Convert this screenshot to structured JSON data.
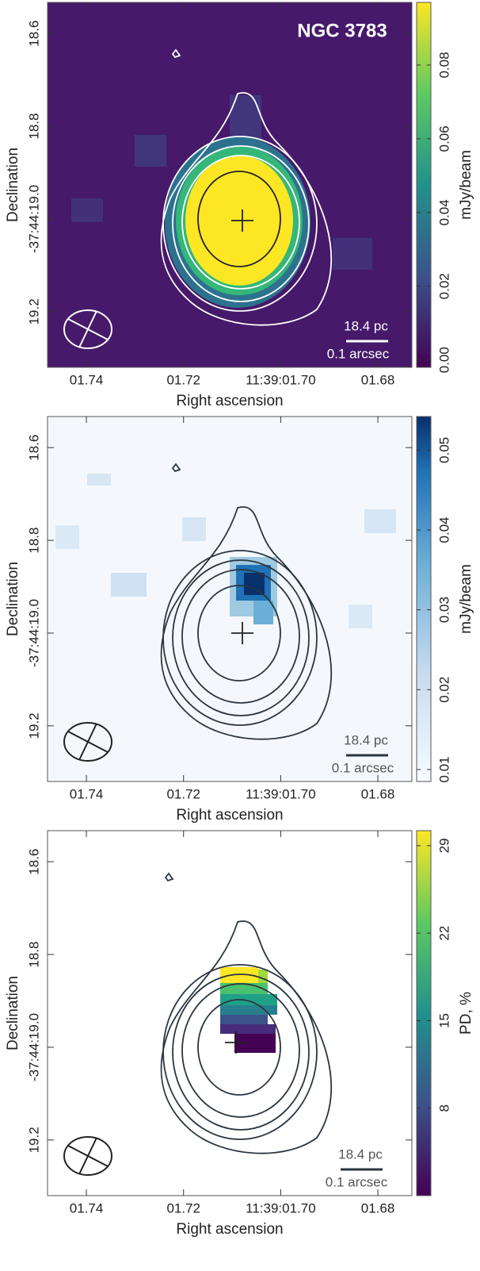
{
  "chart_data": [
    {
      "type": "heatmap",
      "title": "NGC 3783",
      "x_label": "Right ascension",
      "y_label": "Declination",
      "colorbar_label": "mJy/beam",
      "colormap": "viridis",
      "xlim": [
        1.748,
        1.673
      ],
      "xticks": [
        {
          "value": 1.74,
          "label": "01.74"
        },
        {
          "value": 1.72,
          "label": "01.72"
        },
        {
          "value": 1.7,
          "label": "11:39:01.70"
        },
        {
          "value": 1.68,
          "label": "01.68"
        }
      ],
      "ylim": [
        18.533,
        19.32
      ],
      "yticks": [
        18.6,
        18.8,
        {
          "value": 19.0,
          "label": "-37:44:19.0"
        },
        19.2
      ],
      "clim": [
        -0.002,
        0.097
      ],
      "cticks": [
        {
          "value": 0,
          "label": "0.00"
        },
        0.02,
        0.04,
        0.06,
        0.08
      ],
      "scale_bar": [
        "18.4 pc",
        "0.1 arcsec"
      ]
    },
    {
      "type": "heatmap",
      "x_label": "Right ascension",
      "y_label": "Declination",
      "colorbar_label": "mJy/beam",
      "colormap": "blues",
      "xlim": [
        1.748,
        1.673
      ],
      "xticks": [
        {
          "value": 1.74,
          "label": "01.74"
        },
        {
          "value": 1.72,
          "label": "01.72"
        },
        {
          "value": 1.7,
          "label": "11:39:01.70"
        },
        {
          "value": 1.68,
          "label": "01.68"
        }
      ],
      "ylim": [
        18.533,
        19.32
      ],
      "yticks": [
        18.6,
        18.8,
        {
          "value": 19.0,
          "label": "-37:44:19.0"
        },
        19.2
      ],
      "clim": [
        0.0085,
        0.0542
      ],
      "cticks": [
        0.01,
        0.02,
        0.03,
        0.04,
        0.05
      ],
      "scale_bar": [
        "18.4 pc",
        "0.1 arcsec"
      ]
    },
    {
      "type": "heatmap",
      "x_label": "Right ascension",
      "y_label": "Declination",
      "colorbar_label": "PD, %",
      "colormap": "viridis",
      "xlim": [
        1.748,
        1.673
      ],
      "xticks": [
        {
          "value": 1.74,
          "label": "01.74"
        },
        {
          "value": 1.72,
          "label": "01.72"
        },
        {
          "value": 1.7,
          "label": "11:39:01.70"
        },
        {
          "value": 1.68,
          "label": "01.68"
        }
      ],
      "ylim": [
        18.533,
        19.32
      ],
      "yticks": [
        18.6,
        18.8,
        {
          "value": 19.0,
          "label": "-37:44:19.0"
        },
        19.2
      ],
      "clim": [
        1,
        30.2
      ],
      "cticks": [
        8,
        15,
        22,
        29
      ],
      "scale_bar": [
        "18.4 pc",
        "0.1 arcsec"
      ]
    }
  ]
}
